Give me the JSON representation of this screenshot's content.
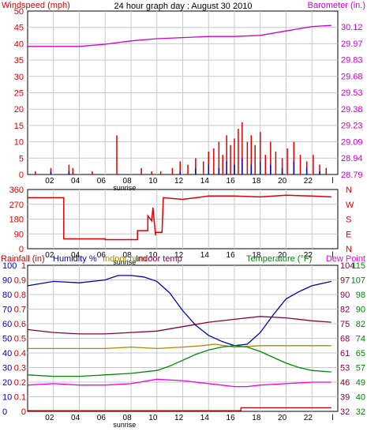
{
  "title": "24 hour graph day : August 30 2010",
  "colors": {
    "wind": "#dd0000",
    "gust": "#0000cc",
    "baro": "#cc00cc",
    "wdir": "#dd0000",
    "rain": "#cc0000",
    "humidity": "#0000bb",
    "indoor_hum": "#aa8800",
    "indoor_temp": "#880044",
    "temperature": "#008800",
    "dew_point": "#ee00ee",
    "grid": "#c8c8c8",
    "axis": "#000000"
  },
  "x_ticks": [
    "02",
    "04",
    "06",
    "08",
    "10",
    "12",
    "14",
    "16",
    "18",
    "20",
    "22",
    "l"
  ],
  "sunrise_label": "sunrise",
  "chart_data": [
    {
      "type": "bar",
      "panel": "wind",
      "left_label": "Windspeed (mph)",
      "right_label": "Barometer (in.)",
      "left_ticks": [
        "50",
        "45",
        "40",
        "35",
        "30",
        "25",
        "20",
        "15",
        "10",
        "5",
        "0"
      ],
      "right_ticks": [
        "30.12",
        "29.97",
        "29.83",
        "29.68",
        "29.53",
        "29.38",
        "29.23",
        "29.09",
        "28.94",
        "28.79"
      ],
      "ylim": [
        0,
        50
      ],
      "baro_ylim": [
        28.79,
        30.27
      ],
      "x_range": [
        0,
        24
      ],
      "series": [
        {
          "name": "Windspeed",
          "x": [
            0.6,
            1.8,
            3.2,
            3.5,
            5.0,
            6.9,
            8.8,
            9.6,
            10.3,
            11.2,
            11.8,
            12.4,
            13.0,
            13.6,
            14.0,
            14.4,
            14.8,
            15.1,
            15.4,
            15.7,
            16.0,
            16.3,
            16.6,
            17.0,
            17.3,
            17.6,
            18.0,
            18.4,
            18.8,
            19.2,
            19.7,
            20.1,
            20.6,
            21.1,
            21.6,
            22.1,
            22.6,
            23.1
          ],
          "values": [
            1,
            2,
            3,
            2,
            1,
            12,
            2,
            1,
            1,
            2,
            4,
            3,
            5,
            4,
            7,
            8,
            10,
            6,
            12,
            9,
            11,
            14,
            16,
            10,
            12,
            9,
            13,
            6,
            10,
            7,
            5,
            8,
            10,
            6,
            4,
            6,
            3,
            2
          ]
        },
        {
          "name": "Gust",
          "x": [
            0.6,
            1.8,
            3.2,
            11.8,
            13.0,
            14.0,
            14.8,
            15.4,
            16.0,
            16.6,
            17.3,
            18.0,
            18.8,
            19.7,
            20.6,
            21.6,
            22.6
          ],
          "values": [
            0,
            1,
            1,
            1,
            2,
            3,
            2,
            4,
            3,
            5,
            3,
            4,
            3,
            2,
            4,
            2,
            1
          ]
        },
        {
          "name": "Barometer",
          "x": [
            0,
            2,
            4,
            6,
            8,
            10,
            12,
            14,
            16,
            18,
            20,
            22,
            23.5
          ],
          "values": [
            29.95,
            29.95,
            29.95,
            29.97,
            30.0,
            30.02,
            30.03,
            30.04,
            30.04,
            30.05,
            30.09,
            30.13,
            30.14
          ]
        }
      ]
    },
    {
      "type": "line",
      "panel": "wind_direction",
      "left_ticks": [
        "360",
        "270",
        "180",
        "90",
        "0"
      ],
      "right_ticks": [
        "N",
        "W",
        "S",
        "E",
        "N"
      ],
      "ylim": [
        0,
        360
      ],
      "x_range": [
        0,
        24
      ],
      "series": [
        {
          "name": "Wind direction",
          "x": [
            0,
            2.5,
            2.8,
            2.8,
            6.0,
            6.0,
            8.5,
            8.5,
            9.3,
            9.3,
            9.6,
            9.7,
            9.9,
            9.9,
            10.4,
            10.5,
            12.0,
            14.0,
            16.0,
            18.0,
            20.0,
            22.0,
            23.5
          ],
          "values": [
            310,
            310,
            310,
            60,
            60,
            55,
            55,
            110,
            110,
            200,
            170,
            250,
            80,
            100,
            100,
            310,
            300,
            320,
            320,
            315,
            325,
            320,
            315
          ]
        }
      ]
    },
    {
      "type": "line",
      "panel": "weather",
      "left_labels": [
        "Rainfall (in)",
        "Humidity %",
        "Indoor hum",
        "Indoor temp"
      ],
      "right_labels": [
        "Temperature (°F)",
        "Dew Point"
      ],
      "hum_ticks": [
        "100",
        "90",
        "80",
        "70",
        "60",
        "50",
        "40",
        "30",
        "20",
        "10",
        "0"
      ],
      "rain_ticks": [
        "1",
        "0.9",
        "0.8",
        "0.7",
        "0.6",
        "0.5",
        "0.4",
        "0.3",
        "0.2",
        "0.1",
        "0"
      ],
      "temp_ticks_a": [
        "104",
        "97",
        "90",
        "82",
        "75",
        "68",
        "61",
        "53",
        "46",
        "39",
        "32"
      ],
      "temp_ticks_b": [
        "115",
        "107",
        "98",
        "90",
        "82",
        "74",
        "65",
        "57",
        "49",
        "40",
        "32"
      ],
      "ylim": [
        0,
        100
      ],
      "x_range": [
        0,
        24
      ],
      "series": [
        {
          "name": "Humidity",
          "x": [
            0,
            2,
            4,
            6,
            7,
            8,
            9,
            10,
            11,
            12,
            13,
            14,
            15,
            16,
            17,
            18,
            19,
            20,
            21,
            22,
            23.5
          ],
          "values": [
            86,
            89,
            88,
            90,
            93,
            93,
            92,
            89,
            81,
            69,
            59,
            52,
            48,
            45,
            46,
            54,
            66,
            77,
            82,
            86,
            89
          ]
        },
        {
          "name": "Indoor hum",
          "x": [
            0,
            2,
            4,
            6,
            8,
            10,
            12,
            13.5,
            14.5,
            16,
            18,
            20,
            22,
            23.5
          ],
          "values": [
            43,
            43,
            43,
            43,
            44,
            43,
            44,
            45,
            46,
            44,
            45,
            45,
            45,
            45
          ]
        },
        {
          "name": "Indoor temp",
          "x": [
            0,
            2,
            4,
            6,
            8,
            10,
            12,
            14,
            16,
            18,
            20,
            22,
            23.5
          ],
          "values": [
            56,
            54,
            53,
            53,
            54,
            55,
            58,
            61,
            63,
            65,
            64,
            62,
            61
          ]
        },
        {
          "name": "Temperature",
          "x": [
            0,
            2,
            4,
            6,
            8,
            10,
            11,
            12,
            13,
            14,
            15,
            16,
            17,
            18,
            19,
            20,
            21,
            22,
            23.5
          ],
          "values": [
            25,
            24,
            24,
            25,
            26,
            28,
            31,
            35,
            39,
            42,
            44,
            45,
            44,
            41,
            37,
            33,
            30,
            28,
            27
          ]
        },
        {
          "name": "Dew Point",
          "x": [
            0,
            2,
            4,
            6,
            8,
            10,
            12,
            14,
            15,
            16,
            17,
            18,
            20,
            22,
            23.5
          ],
          "values": [
            18,
            19,
            18,
            18,
            19,
            22,
            21,
            19,
            18,
            17,
            17,
            18,
            19,
            20,
            20
          ]
        },
        {
          "name": "Rainfall",
          "x": [
            0,
            16.5,
            16.5,
            23.5
          ],
          "values": [
            0.005,
            0.005,
            0.025,
            0.025
          ]
        }
      ]
    }
  ]
}
